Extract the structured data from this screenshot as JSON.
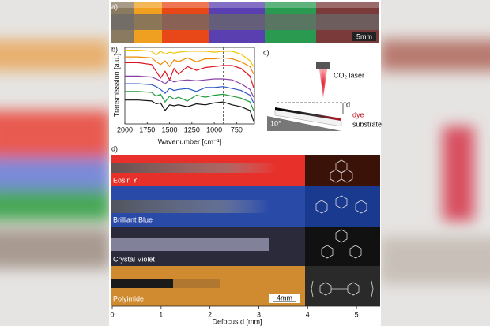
{
  "panel_a": {
    "label": "a)",
    "scale_bar": "5mm"
  },
  "chart_data": {
    "type": "line",
    "label": "b)",
    "xlabel": "Wavenumber [cm⁻¹]",
    "ylabel": "Transmisssion [a.u.]",
    "x": [
      2000,
      1850,
      1700,
      1650,
      1600,
      1550,
      1500,
      1450,
      1400,
      1300,
      1200,
      1100,
      1000,
      900,
      800,
      700,
      600,
      560
    ],
    "xlim": [
      2000,
      550
    ],
    "ylim": [
      0,
      8
    ],
    "xticks": [
      2000,
      1750,
      1500,
      1250,
      1000,
      750
    ],
    "marker_line": 900,
    "series": [
      {
        "color": "#f2c200",
        "values": [
          7.7,
          7.7,
          7.6,
          7.2,
          7.6,
          7.3,
          7.5,
          7.4,
          7.5,
          7.6,
          7.6,
          7.6,
          7.5,
          7.6,
          7.6,
          7.3,
          6.6,
          6.0
        ]
      },
      {
        "color": "#f08a00",
        "values": [
          7.0,
          7.0,
          6.9,
          6.5,
          6.2,
          6.6,
          6.0,
          6.7,
          6.5,
          6.9,
          6.5,
          6.8,
          6.8,
          6.9,
          6.8,
          6.5,
          6.0,
          5.2
        ]
      },
      {
        "color": "#e0141e",
        "values": [
          6.4,
          6.4,
          6.2,
          5.5,
          4.8,
          5.5,
          4.6,
          5.8,
          5.2,
          6.0,
          5.6,
          5.9,
          6.0,
          6.1,
          6.1,
          5.8,
          5.0,
          3.8
        ]
      },
      {
        "color": "#8a3fa8",
        "values": [
          5.0,
          5.0,
          4.9,
          4.7,
          4.5,
          4.2,
          4.6,
          4.4,
          4.5,
          4.6,
          4.5,
          4.6,
          4.7,
          4.7,
          4.6,
          4.2,
          3.6,
          2.8
        ]
      },
      {
        "color": "#2a58c8",
        "values": [
          4.2,
          4.2,
          4.1,
          3.9,
          3.6,
          3.2,
          3.7,
          3.5,
          3.6,
          3.7,
          3.4,
          3.8,
          3.8,
          3.9,
          3.7,
          3.5,
          3.0,
          2.2
        ]
      },
      {
        "color": "#1f9a3a",
        "values": [
          3.4,
          3.4,
          3.3,
          2.9,
          3.1,
          2.3,
          2.9,
          2.6,
          2.8,
          2.4,
          3.0,
          2.8,
          3.0,
          3.1,
          2.9,
          2.7,
          2.3,
          1.4
        ]
      },
      {
        "color": "#111111",
        "values": [
          2.5,
          2.5,
          2.4,
          2.1,
          2.2,
          1.4,
          2.0,
          1.9,
          2.0,
          1.8,
          2.1,
          2.0,
          2.2,
          2.3,
          2.0,
          1.8,
          1.4,
          0.3
        ]
      }
    ]
  },
  "panel_c": {
    "label": "c)",
    "laser": "CO₂ laser",
    "distance": "d",
    "dye": "dye",
    "angle": "10°",
    "substrate": "substrate"
  },
  "panel_d": {
    "label": "d)",
    "xlabel": "Defocus d [mm]",
    "xlim": [
      0,
      5.5
    ],
    "xticks": [
      0,
      1,
      2,
      3,
      4,
      5
    ],
    "rows": [
      "Eosin Y",
      "Brilliant Blue",
      "Crystal Violet",
      "Polyimide"
    ],
    "scale_bar": "4mm"
  }
}
